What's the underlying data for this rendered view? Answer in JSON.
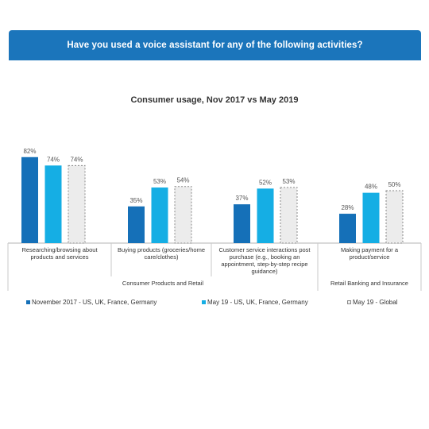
{
  "header": {
    "title": "Have you used a voice assistant for any of the following activities?"
  },
  "chart_data": {
    "type": "bar",
    "title": "Consumer usage, Nov 2017 vs May 2019",
    "categories": [
      "Researching/browsing about products and services",
      "Buying products (groceries/home care/clothes)",
      "Customer service interactions post purchase (e.g., booking an appointment, step-by-step recipe guidance)",
      "Making payment for a product/service"
    ],
    "category_lines": [
      [
        "Researching/browsing about",
        "products and services"
      ],
      [
        "Buying products (groceries/home",
        "care/clothes)"
      ],
      [
        "Customer service interactions post",
        "purchase (e.g., booking an",
        "appointment, step-by-step recipe",
        "guidance)"
      ],
      [
        "Making payment for a",
        "product/service"
      ]
    ],
    "groups": [
      {
        "label": "Consumer Products and Retail",
        "span": [
          0,
          2
        ]
      },
      {
        "label": "Retail Banking and Insurance",
        "span": [
          3,
          3
        ]
      }
    ],
    "series": [
      {
        "name": "November 2017 - US, UK, France, Germany",
        "values": [
          82,
          35,
          37,
          28
        ],
        "color": "#1570b8",
        "style": "solid"
      },
      {
        "name": "May 19 - US, UK, France, Germany",
        "values": [
          74,
          53,
          52,
          48
        ],
        "color": "#15aee4",
        "style": "solid"
      },
      {
        "name": "May 19 - Global",
        "values": [
          74,
          54,
          53,
          50
        ],
        "color": "#ececec",
        "style": "dashed"
      }
    ],
    "value_suffix": "%",
    "ylim": [
      0,
      100
    ],
    "legend_position": "bottom",
    "grid": false
  }
}
